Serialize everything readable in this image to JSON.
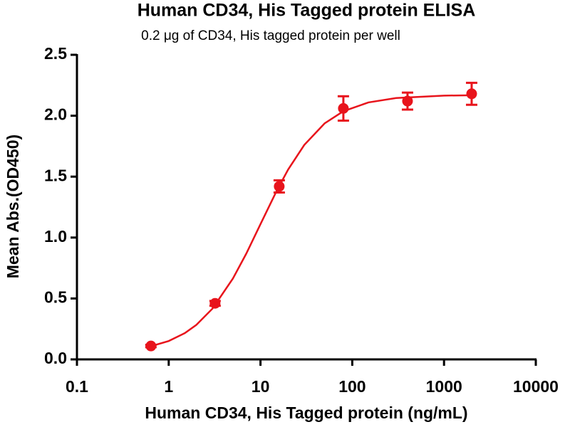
{
  "chart_data": {
    "type": "scatter",
    "title": "Human CD34, His Tagged protein ELISA",
    "subtitle": "0.2 μg of CD34, His tagged protein per well",
    "xlabel": "Human CD34, His Tagged protein (ng/mL)",
    "ylabel": "Mean Abs.(OD450)",
    "color": "#e8141c",
    "x": [
      0.64,
      3.2,
      16,
      80,
      400,
      2000
    ],
    "values": [
      0.11,
      0.46,
      1.42,
      2.06,
      2.12,
      2.18
    ],
    "errors": [
      0.01,
      0.02,
      0.05,
      0.1,
      0.07,
      0.09
    ],
    "fit": {
      "x": [
        0.64,
        1,
        1.5,
        2,
        3,
        5,
        7,
        10,
        15,
        20,
        30,
        50,
        80,
        150,
        300,
        1000,
        2000
      ],
      "values": [
        0.108,
        0.151,
        0.216,
        0.283,
        0.417,
        0.663,
        0.868,
        1.11,
        1.383,
        1.558,
        1.76,
        1.937,
        2.037,
        2.109,
        2.145,
        2.165,
        2.168
      ]
    },
    "xscale": "log",
    "xlim": [
      0.1,
      10000
    ],
    "xticks": [
      0.1,
      1,
      10,
      100,
      1000,
      10000
    ],
    "ylim": [
      0,
      2.5
    ],
    "yticks": [
      {
        "value": 0,
        "label": "0.0"
      },
      0.5,
      {
        "value": 1,
        "label": "1.0"
      },
      1.5,
      {
        "value": 2,
        "label": "2.0"
      },
      2.5
    ]
  }
}
